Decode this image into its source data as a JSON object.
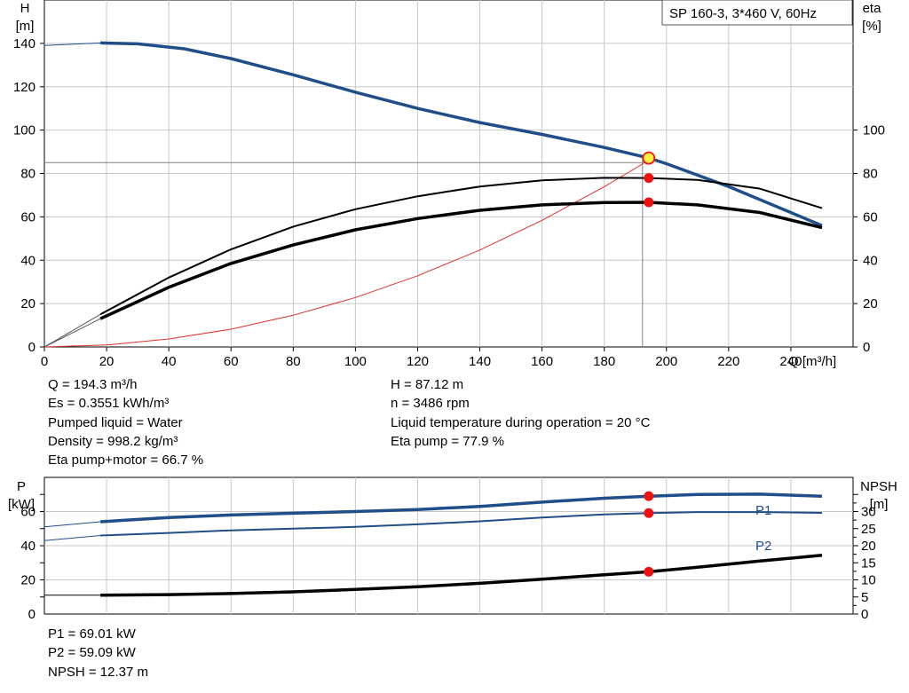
{
  "legend_box": "SP 160-3, 3*460 V, 60Hz",
  "top_chart": {
    "y_left_label": "H",
    "y_left_unit": "[m]",
    "y_right_label": "eta",
    "y_right_unit": "[%]",
    "x_label": "Q [m³/h]"
  },
  "bottom_chart": {
    "y_left_label": "P",
    "y_left_unit": "[kW]",
    "y_right_label": "NPSH",
    "y_right_unit": "[m]",
    "series_label_p1": "P1",
    "series_label_p2": "P2"
  },
  "params": {
    "q": "Q = 194.3 m³/h",
    "es": "Es = 0.3551 kWh/m³",
    "liquid": "Pumped liquid = Water",
    "density": "Density = 998.2 kg/m³",
    "eta_pm": "Eta pump+motor = 66.7 %",
    "h": "H = 87.12 m",
    "n": "n = 3486 rpm",
    "temp": "Liquid temperature during operation = 20 °C",
    "eta_pump": "Eta pump = 77.9 %",
    "p1": "P1 = 69.01 kW",
    "p2": "P2 = 59.09 kW",
    "npsh": "NPSH = 12.37 m"
  },
  "colors": {
    "head_curve": "#1f4e89",
    "power_curve": "#1f4e89",
    "efficiency_curve": "#000000",
    "system_curve": "#e0302a",
    "duty_point": "#ee1111",
    "duty_point_highlight": "#ffee44",
    "grid": "#c8c8c8"
  },
  "chart_data": [
    {
      "type": "line",
      "x_axis": {
        "label": "Q [m³/h]",
        "range": [
          0,
          260
        ],
        "ticks": [
          0,
          20,
          40,
          60,
          80,
          100,
          120,
          140,
          160,
          180,
          200,
          220,
          240
        ]
      },
      "y_left": {
        "label": "H [m]",
        "range": [
          0,
          160
        ],
        "ticks": [
          0,
          20,
          40,
          60,
          80,
          100,
          120,
          140
        ]
      },
      "y_right": {
        "label": "eta [%]",
        "range": [
          0,
          160
        ],
        "ticks": [
          0,
          20,
          40,
          60,
          80,
          100
        ]
      },
      "grid": true,
      "series": [
        {
          "key": "H",
          "axis": "left",
          "x": [
            0,
            18,
            30,
            45,
            60,
            80,
            100,
            120,
            140,
            160,
            180,
            194.3,
            200,
            220,
            250
          ],
          "y": [
            139,
            140.2,
            139.8,
            137.5,
            133,
            125.5,
            117.5,
            110,
            103.5,
            98,
            92,
            87.12,
            84.5,
            74,
            56
          ]
        },
        {
          "key": "eta_pump",
          "axis": "right",
          "x": [
            0,
            18,
            40,
            60,
            80,
            100,
            120,
            140,
            160,
            180,
            194.3,
            210,
            230,
            250
          ],
          "y": [
            0,
            15,
            32,
            45,
            55.5,
            63.5,
            69.5,
            74,
            76.8,
            78,
            77.9,
            77,
            73,
            64
          ]
        },
        {
          "key": "eta_pump_motor",
          "axis": "right",
          "x": [
            0,
            18,
            40,
            60,
            80,
            100,
            120,
            140,
            160,
            180,
            194.3,
            210,
            230,
            250
          ],
          "y": [
            0,
            13,
            27.5,
            38.5,
            47,
            54,
            59.2,
            63,
            65.5,
            66.6,
            66.7,
            65.5,
            62,
            55
          ]
        },
        {
          "key": "system_curve",
          "axis": "left",
          "x": [
            0,
            20,
            40,
            60,
            80,
            100,
            120,
            140,
            160,
            180,
            192,
            194.3
          ],
          "y": [
            0,
            0.9,
            3.7,
            8.2,
            14.6,
            22.8,
            32.8,
            44.7,
            58.4,
            73.9,
            84.1,
            86.2
          ]
        }
      ],
      "static_head_line": 85,
      "duty_point": {
        "Q": 194.3,
        "H": 87.12,
        "eta_pump": 77.9,
        "eta_pump_motor": 66.7
      }
    },
    {
      "type": "line",
      "x_axis": {
        "label": "Q [m³/h]",
        "range": [
          0,
          260
        ]
      },
      "y_left": {
        "label": "P [kW]",
        "range": [
          0,
          80
        ],
        "ticks": [
          0,
          20,
          40,
          60
        ]
      },
      "y_right": {
        "label": "NPSH [m]",
        "range": [
          0,
          40
        ],
        "ticks": [
          0,
          5,
          10,
          15,
          20,
          25,
          30
        ]
      },
      "grid": true,
      "series": [
        {
          "key": "P1",
          "name": "P1",
          "axis": "left",
          "x": [
            0,
            18,
            40,
            60,
            80,
            100,
            120,
            140,
            160,
            180,
            194.3,
            210,
            230,
            250
          ],
          "y": [
            51,
            54,
            56.5,
            58,
            59,
            60,
            61.2,
            63,
            65.5,
            67.8,
            69.01,
            70,
            70.2,
            69
          ]
        },
        {
          "key": "P2",
          "name": "P2",
          "axis": "left",
          "x": [
            0,
            18,
            40,
            60,
            80,
            100,
            120,
            140,
            160,
            180,
            194.3,
            210,
            230,
            250
          ],
          "y": [
            43,
            46,
            47.5,
            49,
            50,
            51,
            52.5,
            54.3,
            56.5,
            58.3,
            59.09,
            59.7,
            59.7,
            59.2
          ]
        },
        {
          "key": "NPSH",
          "axis": "right",
          "x": [
            0,
            18,
            40,
            60,
            80,
            100,
            120,
            140,
            160,
            180,
            194.3,
            210,
            230,
            250
          ],
          "y": [
            5.5,
            5.5,
            5.7,
            6,
            6.5,
            7.2,
            8,
            9,
            10.2,
            11.5,
            12.37,
            13.7,
            15.5,
            17.2
          ]
        }
      ],
      "duty_point": {
        "Q": 194.3,
        "P1": 69.01,
        "P2": 59.09,
        "NPSH": 12.37
      }
    }
  ]
}
